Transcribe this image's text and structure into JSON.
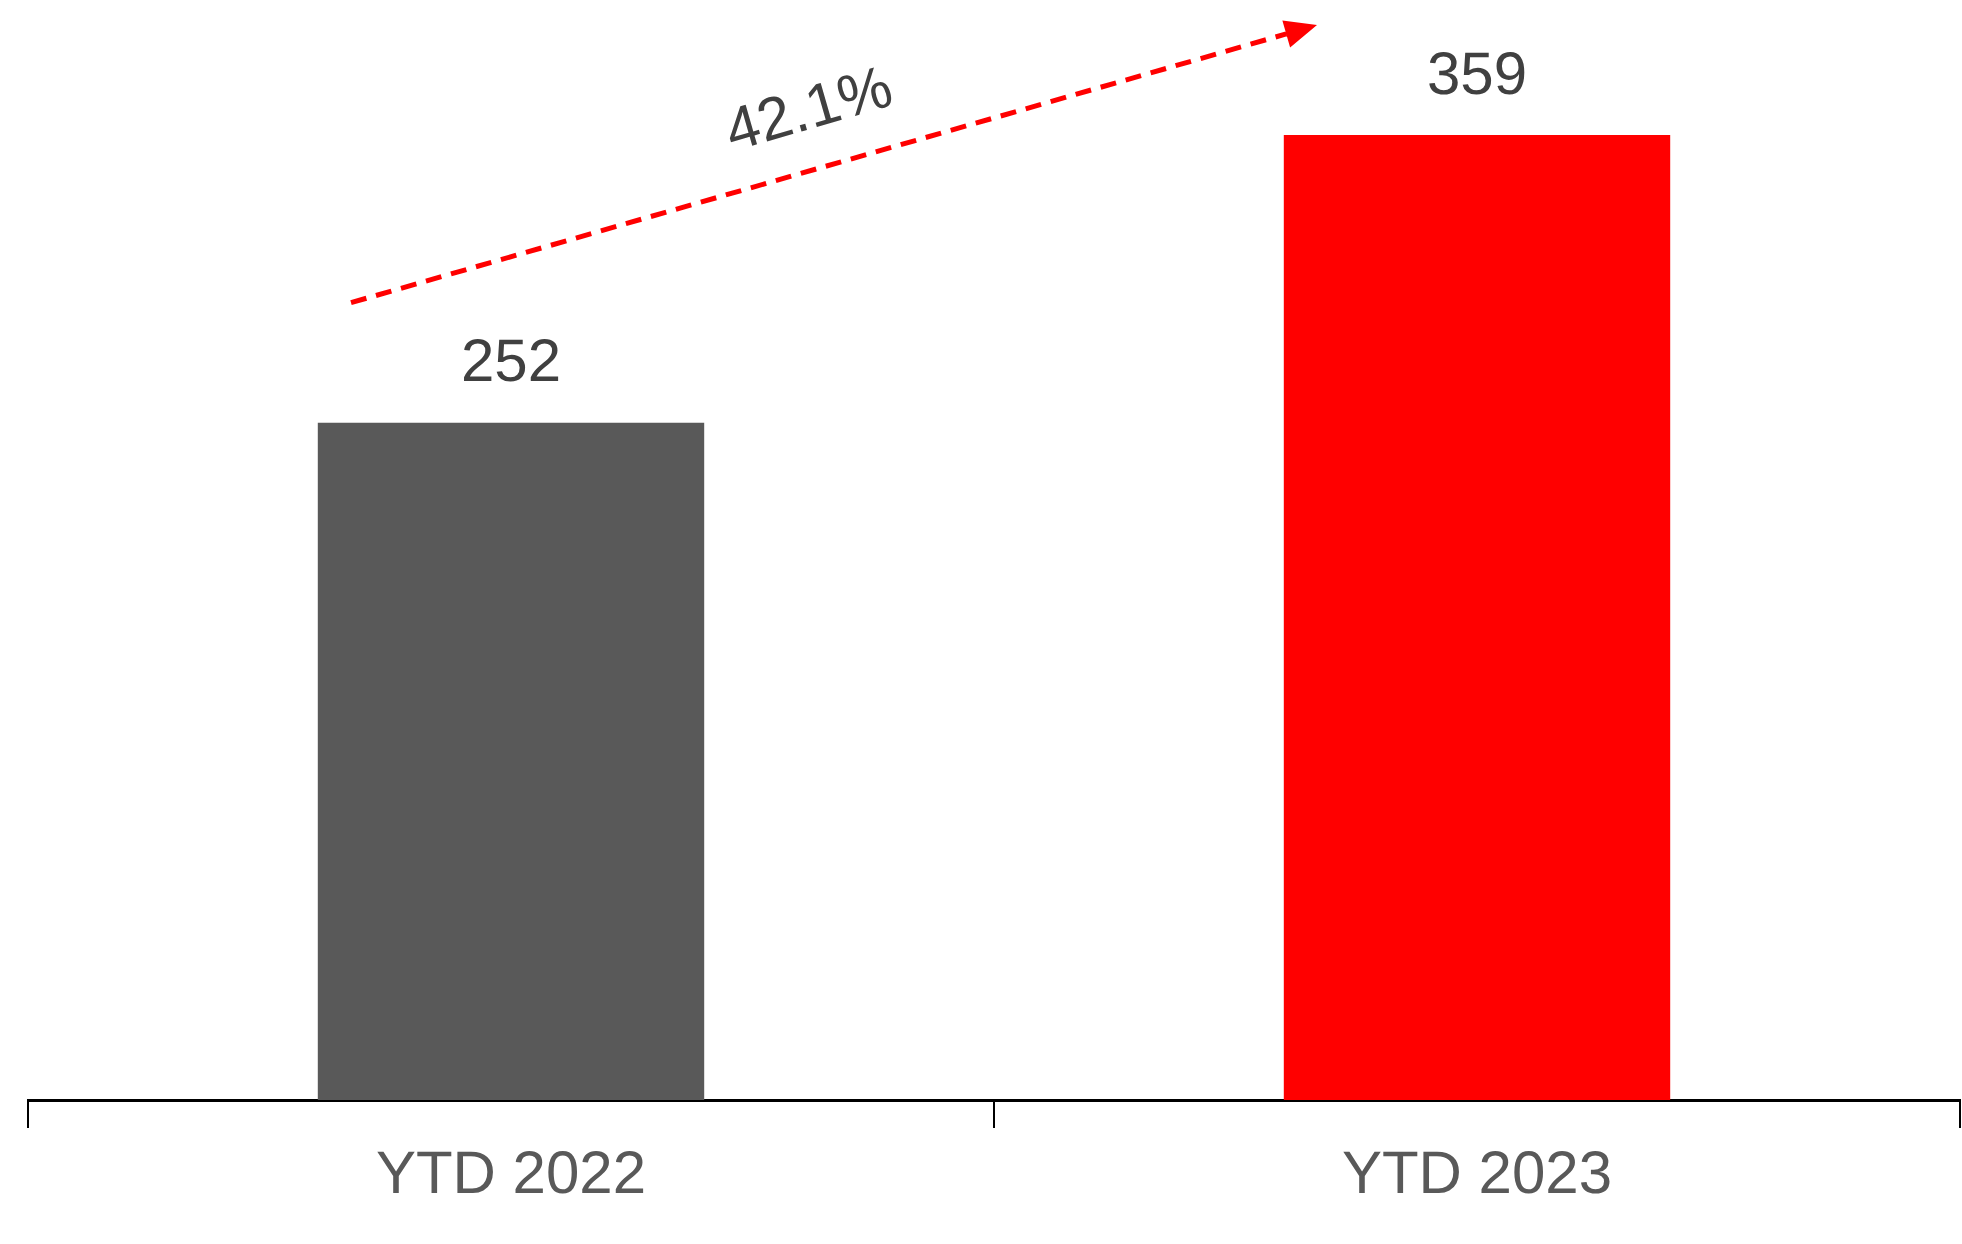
{
  "chart_data": {
    "type": "bar",
    "categories": [
      "YTD 2022",
      "YTD 2023"
    ],
    "values": [
      252,
      359
    ],
    "colors": [
      "#595959",
      "#ff0000"
    ],
    "data_labels": true,
    "grid": false,
    "legend": false,
    "tick_labels": "x",
    "annotations": [
      "42.1%"
    ]
  }
}
